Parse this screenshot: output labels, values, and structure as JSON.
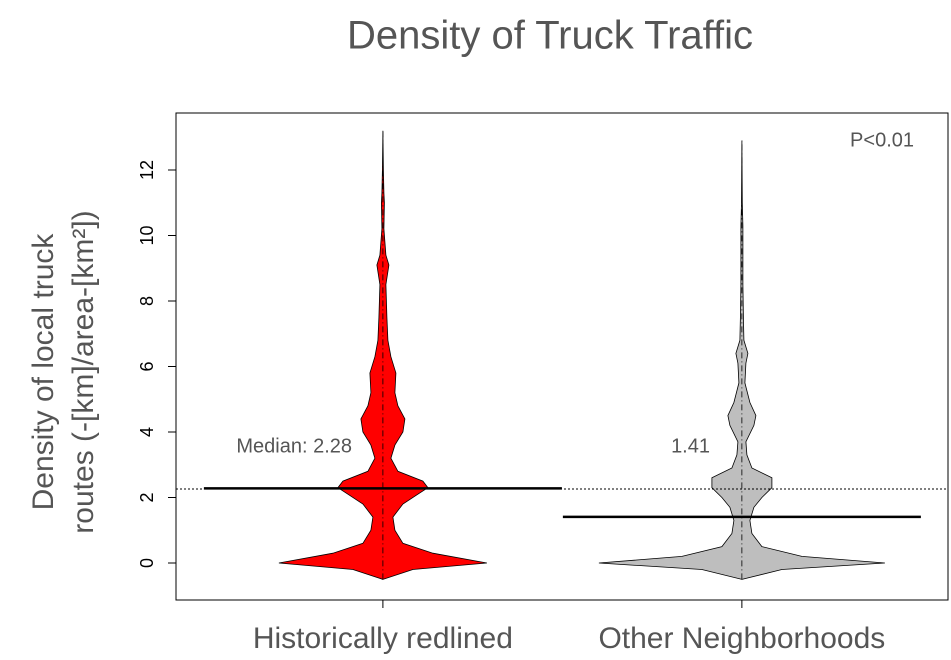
{
  "chart_data": {
    "type": "beanplot",
    "title": "Density of Truck Traffic",
    "y_label": [
      "Density of local truck",
      "routes (-[km]/area-[km²])"
    ],
    "annotation": "P<0.01",
    "categories": [
      "Historically redlined",
      "Other Neighborhoods"
    ],
    "series": [
      {
        "name": "Historically redlined",
        "color": "#ff0000",
        "median": 2.28,
        "median_label": "Median:  2.28",
        "density": {
          "y": [
            -0.5,
            -0.2,
            0,
            0.3,
            0.6,
            1.0,
            1.4,
            1.8,
            2.1,
            2.3,
            2.5,
            2.8,
            3.2,
            3.6,
            4.0,
            4.4,
            4.8,
            5.2,
            5.8,
            6.3,
            6.8,
            7.5,
            8.5,
            9.1,
            9.4,
            10.2,
            11.0,
            11.3,
            12.0,
            13.2
          ],
          "width": [
            0,
            0.3,
            1.04,
            0.5,
            0.2,
            0.12,
            0.1,
            0.2,
            0.35,
            0.45,
            0.4,
            0.15,
            0.08,
            0.12,
            0.2,
            0.22,
            0.15,
            0.12,
            0.13,
            0.08,
            0.05,
            0.04,
            0.03,
            0.06,
            0.03,
            0.01,
            0.015,
            0.01,
            0.005,
            0
          ]
        }
      },
      {
        "name": "Other Neighborhoods",
        "color": "#bebebe",
        "median": 1.41,
        "median_label": "1.41",
        "density": {
          "y": [
            -0.5,
            -0.2,
            0,
            0.2,
            0.5,
            0.9,
            1.3,
            1.7,
            2.0,
            2.3,
            2.6,
            2.9,
            3.3,
            3.7,
            4.2,
            4.5,
            4.9,
            5.5,
            6.1,
            6.4,
            6.8,
            7.5,
            8.5,
            10.3,
            11.0,
            12.9
          ],
          "width": [
            0,
            0.4,
            1.43,
            0.6,
            0.2,
            0.1,
            0.08,
            0.12,
            0.2,
            0.3,
            0.3,
            0.1,
            0.05,
            0.04,
            0.12,
            0.14,
            0.08,
            0.03,
            0.04,
            0.06,
            0.02,
            0.015,
            0.01,
            0.01,
            0.004,
            0
          ]
        }
      }
    ],
    "reference_line": 2.26,
    "ylim": [
      -1.13,
      13.74
    ],
    "yticks": [
      0,
      2,
      4,
      6,
      8,
      10,
      12
    ]
  }
}
